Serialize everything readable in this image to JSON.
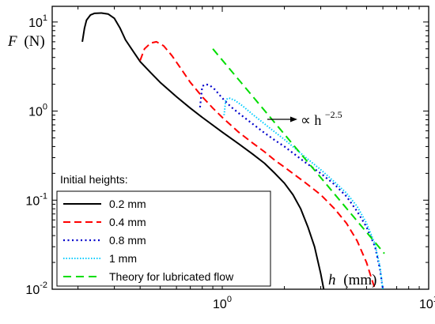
{
  "chart_data": {
    "type": "line",
    "title": "",
    "xlabel_var": "h",
    "xlabel_unit": "(mm)",
    "ylabel_var": "F",
    "ylabel_unit": "(N)",
    "xscale": "log",
    "yscale": "log",
    "xlim": [
      0.15,
      10
    ],
    "ylim": [
      0.01,
      15
    ],
    "x_ticks": [
      {
        "value": 1,
        "label": "10",
        "exp": "0"
      },
      {
        "value": 10,
        "label": "10",
        "exp": "1"
      }
    ],
    "y_ticks": [
      {
        "value": 0.01,
        "label": "10",
        "exp": "-2"
      },
      {
        "value": 0.1,
        "label": "10",
        "exp": "-1"
      },
      {
        "value": 1,
        "label": "10",
        "exp": "0"
      },
      {
        "value": 10,
        "label": "10",
        "exp": "1"
      }
    ],
    "grid": false,
    "legend": {
      "title": "Initial heights:",
      "placement": "bottom-left"
    },
    "annotation": {
      "text": "∝ h",
      "exp": "−2.5",
      "x": 1.55,
      "y": 0.95
    },
    "series": [
      {
        "name": "0.2 mm",
        "color": "#000000",
        "dash": "solid",
        "points": [
          [
            0.21,
            6.0
          ],
          [
            0.215,
            8.5
          ],
          [
            0.22,
            10.5
          ],
          [
            0.23,
            12.0
          ],
          [
            0.24,
            12.5
          ],
          [
            0.26,
            12.6
          ],
          [
            0.28,
            12.3
          ],
          [
            0.3,
            11.0
          ],
          [
            0.32,
            8.5
          ],
          [
            0.34,
            6.3
          ],
          [
            0.37,
            4.7
          ],
          [
            0.4,
            3.6
          ],
          [
            0.45,
            2.7
          ],
          [
            0.5,
            2.1
          ],
          [
            0.6,
            1.45
          ],
          [
            0.7,
            1.08
          ],
          [
            0.8,
            0.85
          ],
          [
            1.0,
            0.58
          ],
          [
            1.2,
            0.43
          ],
          [
            1.4,
            0.33
          ],
          [
            1.6,
            0.26
          ],
          [
            1.8,
            0.2
          ],
          [
            2.0,
            0.155
          ],
          [
            2.2,
            0.115
          ],
          [
            2.4,
            0.08
          ],
          [
            2.6,
            0.05
          ],
          [
            2.8,
            0.03
          ],
          [
            3.0,
            0.015
          ],
          [
            3.1,
            0.01
          ]
        ]
      },
      {
        "name": "0.4 mm",
        "color": "#ff0000",
        "dash": "dashed",
        "points": [
          [
            0.4,
            3.7
          ],
          [
            0.42,
            5.0
          ],
          [
            0.45,
            5.8
          ],
          [
            0.48,
            6.0
          ],
          [
            0.52,
            5.4
          ],
          [
            0.57,
            4.2
          ],
          [
            0.63,
            3.0
          ],
          [
            0.7,
            2.1
          ],
          [
            0.8,
            1.45
          ],
          [
            0.9,
            1.08
          ],
          [
            1.0,
            0.85
          ],
          [
            1.2,
            0.58
          ],
          [
            1.4,
            0.44
          ],
          [
            1.6,
            0.35
          ],
          [
            1.8,
            0.28
          ],
          [
            2.0,
            0.235
          ],
          [
            2.5,
            0.16
          ],
          [
            3.0,
            0.115
          ],
          [
            3.5,
            0.08
          ],
          [
            4.0,
            0.055
          ],
          [
            4.5,
            0.035
          ],
          [
            5.0,
            0.02
          ],
          [
            5.3,
            0.013
          ],
          [
            5.5,
            0.01
          ]
        ]
      },
      {
        "name": "0.8 mm",
        "color": "#0000cc",
        "dash": "dotted",
        "points": [
          [
            0.78,
            1.1
          ],
          [
            0.8,
            1.9
          ],
          [
            0.83,
            2.0
          ],
          [
            0.87,
            1.95
          ],
          [
            0.92,
            1.75
          ],
          [
            1.0,
            1.4
          ],
          [
            1.1,
            1.12
          ],
          [
            1.2,
            0.95
          ],
          [
            1.4,
            0.72
          ],
          [
            1.6,
            0.57
          ],
          [
            1.8,
            0.47
          ],
          [
            2.0,
            0.4
          ],
          [
            2.5,
            0.27
          ],
          [
            3.0,
            0.2
          ],
          [
            3.5,
            0.15
          ],
          [
            4.0,
            0.11
          ],
          [
            4.5,
            0.075
          ],
          [
            5.0,
            0.05
          ],
          [
            5.5,
            0.03
          ],
          [
            5.8,
            0.017
          ],
          [
            6.0,
            0.01
          ]
        ]
      },
      {
        "name": "1 mm",
        "color": "#00ccff",
        "dash": "dotted-fine",
        "points": [
          [
            1.02,
            0.9
          ],
          [
            1.04,
            1.35
          ],
          [
            1.08,
            1.4
          ],
          [
            1.15,
            1.32
          ],
          [
            1.25,
            1.15
          ],
          [
            1.4,
            0.92
          ],
          [
            1.6,
            0.72
          ],
          [
            1.8,
            0.58
          ],
          [
            2.0,
            0.48
          ],
          [
            2.5,
            0.31
          ],
          [
            3.0,
            0.22
          ],
          [
            3.5,
            0.16
          ],
          [
            4.0,
            0.12
          ],
          [
            4.5,
            0.085
          ],
          [
            5.0,
            0.055
          ],
          [
            5.5,
            0.032
          ],
          [
            5.8,
            0.018
          ],
          [
            6.0,
            0.01
          ]
        ]
      },
      {
        "name": "Theory for lubricated flow",
        "color": "#00dd00",
        "dash": "long-dash",
        "points": [
          [
            0.9,
            5.0
          ],
          [
            6.1,
            0.0252
          ]
        ]
      }
    ]
  }
}
